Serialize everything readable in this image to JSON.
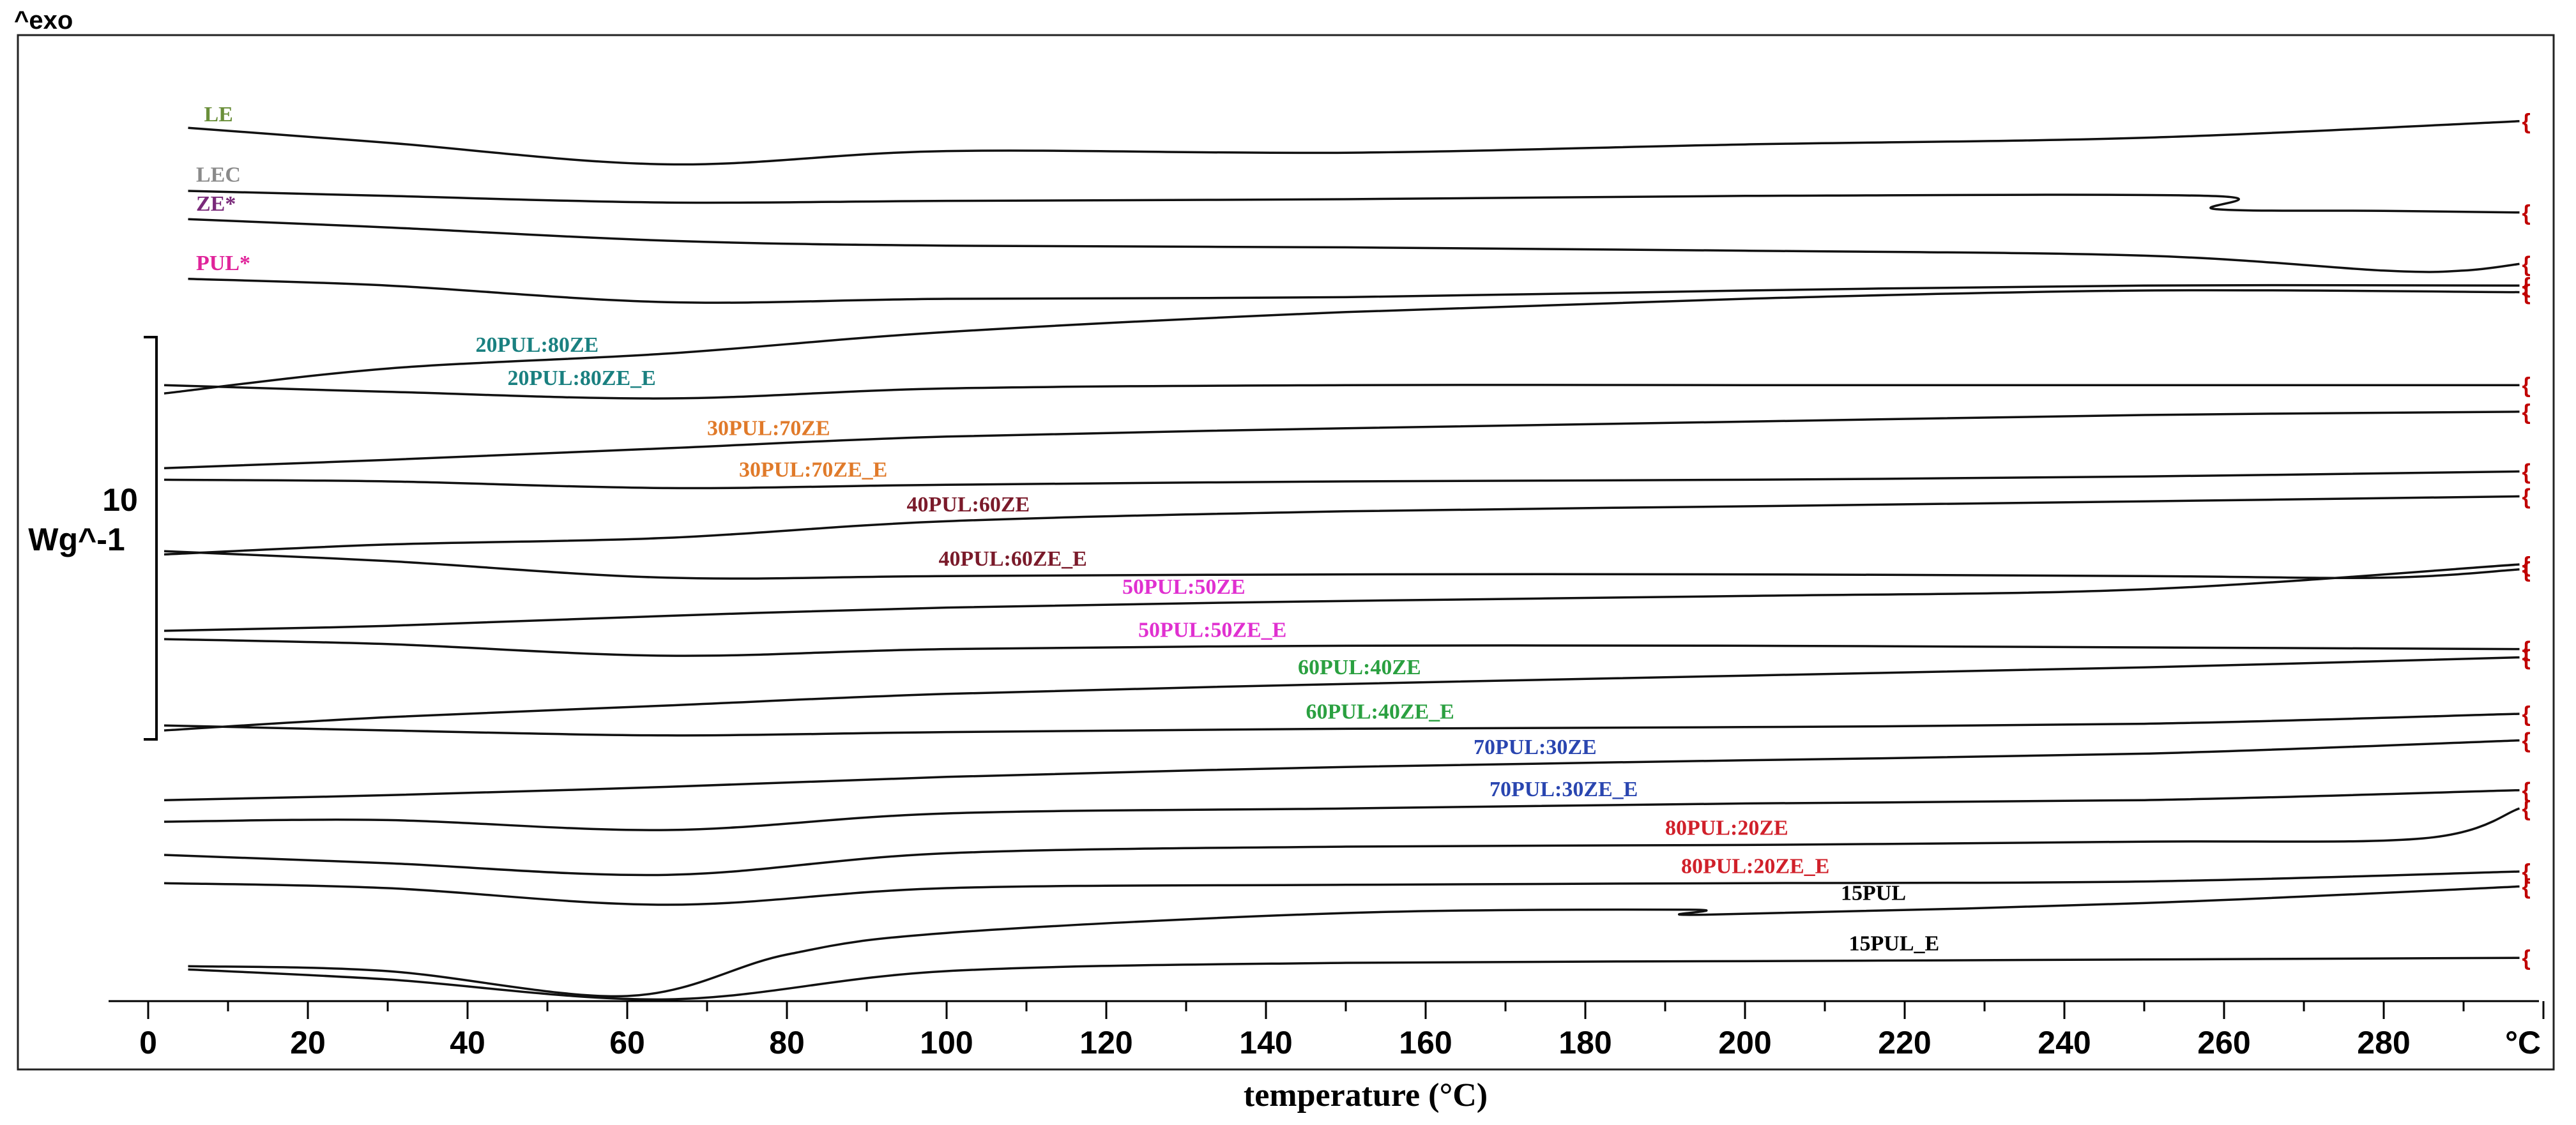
{
  "chart_data": {
    "type": "line",
    "title": "",
    "xlabel": "temperature (°C)",
    "x_unit_label": "°C",
    "ylabel_top": "^exo",
    "scale_bar_value": "10",
    "scale_bar_unit": "Wg^-1",
    "xlim": [
      0,
      300
    ],
    "xticks": [
      0,
      20,
      40,
      60,
      80,
      100,
      120,
      140,
      160,
      180,
      200,
      220,
      240,
      260,
      280
    ],
    "xtick_labels": [
      "0",
      "20",
      "40",
      "60",
      "80",
      "100",
      "120",
      "140",
      "160",
      "180",
      "200",
      "220",
      "240",
      "260",
      "280"
    ],
    "grid": false,
    "series": [
      {
        "name": "LE",
        "color": "#6a8f3a",
        "font": "serif",
        "label_x": 7,
        "x": [
          5,
          30,
          65,
          100,
          150,
          200,
          250,
          297
        ],
        "y": [
          77,
          86,
          99,
          91,
          92,
          87,
          83,
          73
        ]
      },
      {
        "name": "LEC",
        "color": "#8a8a8a",
        "font": "serif",
        "label_x": 6,
        "x": [
          5,
          30,
          65,
          100,
          150,
          200,
          258,
          259,
          280,
          297
        ],
        "y": [
          115,
          118,
          122,
          121,
          120,
          118,
          118,
          126,
          127,
          128
        ]
      },
      {
        "name": "ZE*",
        "color": "#7a2a7a",
        "font": "serif",
        "label_x": 6,
        "x": [
          5,
          30,
          65,
          100,
          150,
          200,
          250,
          280,
          290,
          297
        ],
        "y": [
          132,
          137,
          145,
          148,
          149,
          151,
          154,
          163,
          163,
          159
        ]
      },
      {
        "name": "PUL*",
        "color": "#e0249a",
        "font": "serif",
        "label_x": 6,
        "x": [
          5,
          30,
          65,
          100,
          150,
          200,
          250,
          297
        ],
        "y": [
          168,
          172,
          182,
          180,
          179,
          175,
          172,
          172
        ]
      },
      {
        "name": "20PUL:80ZE",
        "color": "#1a8080",
        "font": "serif",
        "label_x": 41,
        "x": [
          2,
          30,
          65,
          100,
          150,
          200,
          250,
          297
        ],
        "y": [
          237,
          222,
          213,
          200,
          188,
          180,
          175,
          176
        ]
      },
      {
        "name": "20PUL:80ZE_E",
        "color": "#1a8080",
        "font": "serif",
        "label_x": 45,
        "x": [
          2,
          30,
          65,
          100,
          150,
          200,
          250,
          297
        ],
        "y": [
          232,
          236,
          240,
          234,
          232,
          232,
          232,
          232
        ]
      },
      {
        "name": "30PUL:70ZE",
        "color": "#e07a2a",
        "font": "serif",
        "label_x": 70,
        "x": [
          2,
          30,
          65,
          100,
          150,
          200,
          250,
          297
        ],
        "y": [
          282,
          277,
          270,
          263,
          258,
          254,
          250,
          248
        ]
      },
      {
        "name": "30PUL:70ZE_E",
        "color": "#e07a2a",
        "font": "serif",
        "label_x": 74,
        "x": [
          2,
          30,
          65,
          100,
          150,
          200,
          250,
          297
        ],
        "y": [
          289,
          290,
          294,
          292,
          290,
          289,
          287,
          284
        ]
      },
      {
        "name": "40PUL:60ZE",
        "color": "#7a1a2a",
        "font": "serif",
        "label_x": 95,
        "x": [
          2,
          30,
          65,
          100,
          150,
          200,
          250,
          297
        ],
        "y": [
          334,
          328,
          324,
          314,
          308,
          305,
          302,
          299
        ]
      },
      {
        "name": "40PUL:60ZE_E",
        "color": "#7a1a2a",
        "font": "serif",
        "label_x": 99,
        "x": [
          2,
          30,
          65,
          100,
          150,
          200,
          250,
          280,
          297
        ],
        "y": [
          332,
          338,
          348,
          347,
          346,
          346,
          347,
          348,
          343
        ]
      },
      {
        "name": "50PUL:50ZE",
        "color": "#e030d0",
        "font": "serif",
        "label_x": 122,
        "x": [
          2,
          30,
          65,
          100,
          150,
          200,
          250,
          297
        ],
        "y": [
          380,
          377,
          371,
          366,
          362,
          359,
          355,
          340
        ]
      },
      {
        "name": "50PUL:50ZE_E",
        "color": "#e030d0",
        "font": "serif",
        "label_x": 124,
        "x": [
          2,
          30,
          65,
          100,
          150,
          200,
          250,
          297
        ],
        "y": [
          385,
          388,
          395,
          391,
          389,
          389,
          390,
          391
        ]
      },
      {
        "name": "60PUL:40ZE",
        "color": "#2aa040",
        "font": "serif",
        "label_x": 144,
        "x": [
          2,
          30,
          65,
          100,
          150,
          200,
          250,
          297
        ],
        "y": [
          440,
          432,
          425,
          418,
          412,
          407,
          402,
          396
        ]
      },
      {
        "name": "60PUL:40ZE_E",
        "color": "#2aa040",
        "font": "serif",
        "label_x": 145,
        "x": [
          2,
          30,
          65,
          100,
          150,
          200,
          250,
          297
        ],
        "y": [
          437,
          440,
          443,
          441,
          439,
          438,
          436,
          430
        ]
      },
      {
        "name": "70PUL:30ZE",
        "color": "#2a46b0",
        "font": "serif",
        "label_x": 166,
        "x": [
          2,
          30,
          65,
          100,
          150,
          200,
          250,
          297
        ],
        "y": [
          482,
          479,
          474,
          468,
          462,
          458,
          454,
          446
        ]
      },
      {
        "name": "70PUL:30ZE_E",
        "color": "#2a46b0",
        "font": "serif",
        "label_x": 168,
        "x": [
          2,
          30,
          65,
          100,
          150,
          200,
          250,
          297
        ],
        "y": [
          495,
          494,
          500,
          490,
          487,
          484,
          482,
          476
        ]
      },
      {
        "name": "80PUL:20ZE",
        "color": "#d0202a",
        "font": "serif",
        "label_x": 190,
        "x": [
          2,
          30,
          65,
          100,
          150,
          200,
          250,
          285,
          297
        ],
        "y": [
          515,
          520,
          527,
          514,
          510,
          509,
          507,
          505,
          487
        ]
      },
      {
        "name": "80PUL:20ZE_E",
        "color": "#d0202a",
        "font": "serif",
        "label_x": 192,
        "x": [
          2,
          30,
          65,
          100,
          150,
          200,
          250,
          297
        ],
        "y": [
          532,
          535,
          545,
          535,
          533,
          532,
          531,
          525
        ]
      },
      {
        "name": "15PUL",
        "color": "#000000",
        "font": "serif",
        "label_x": 212,
        "x": [
          5,
          30,
          60,
          80,
          100,
          150,
          193,
          195,
          250,
          297
        ],
        "y": [
          582,
          585,
          600,
          575,
          562,
          550,
          548,
          551,
          544,
          534
        ]
      },
      {
        "name": "15PUL_E",
        "color": "#000000",
        "font": "serif",
        "label_x": 213,
        "x": [
          5,
          30,
          65,
          100,
          150,
          200,
          250,
          297
        ],
        "y": [
          584,
          590,
          602,
          585,
          580,
          579,
          578,
          577
        ]
      }
    ],
    "y_note": "y values are relative signal offsets on an arbitrary stacked scale (larger = lower on chart)"
  }
}
